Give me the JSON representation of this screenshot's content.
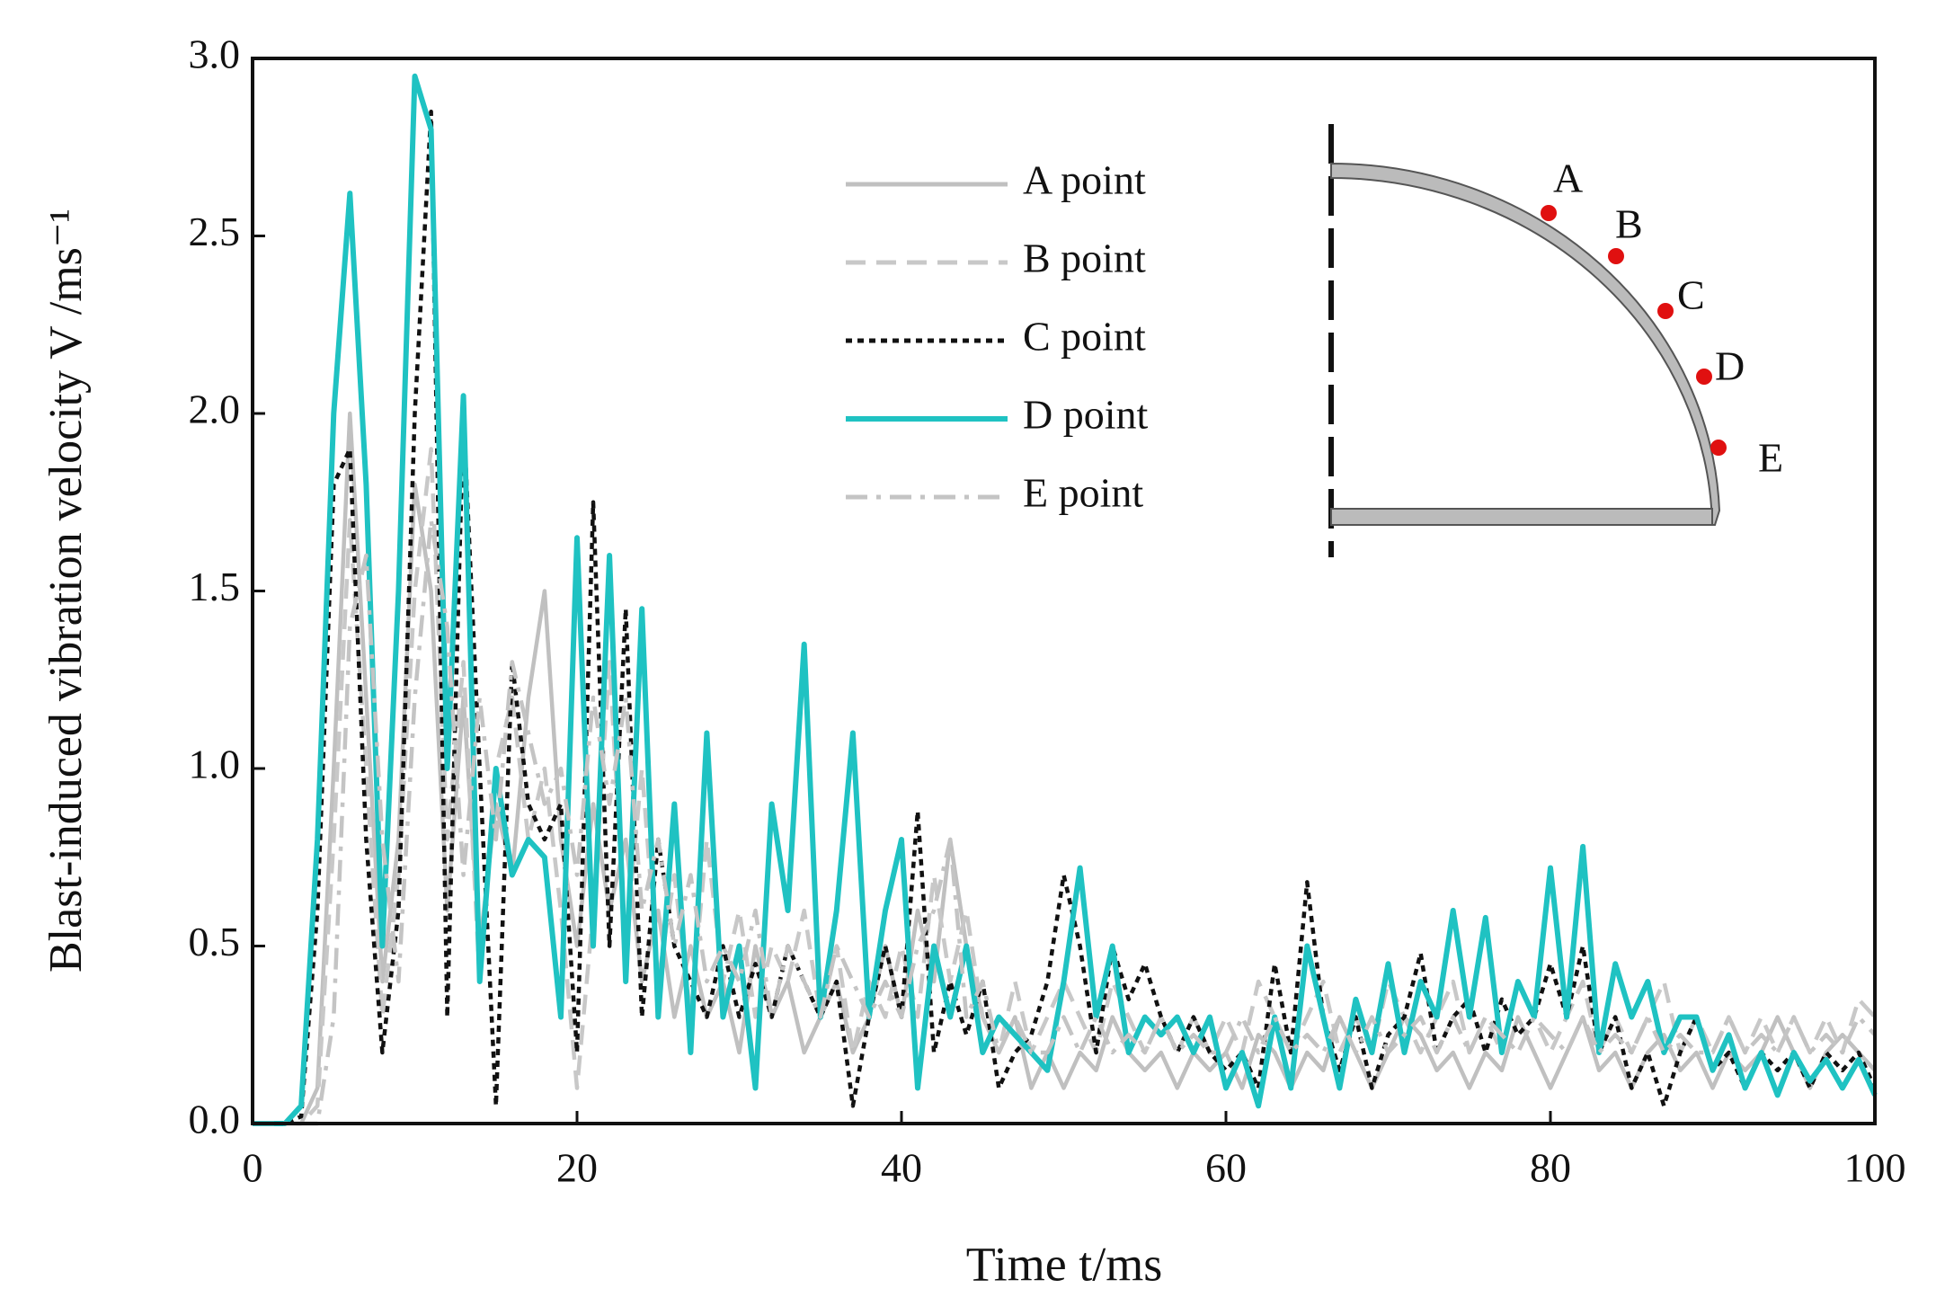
{
  "chart_data": {
    "type": "line",
    "xlabel": "Time t/ms",
    "ylabel": "Blast-induced vibration velocity V /ms⁻¹",
    "xlim": [
      0,
      100
    ],
    "xticks": [
      0,
      20,
      40,
      60,
      80,
      100
    ],
    "ylim": [
      0,
      3
    ],
    "yticks": [
      {
        "value": 0,
        "label": "0.0"
      },
      0.5,
      {
        "value": 1,
        "label": "1.0"
      },
      1.5,
      {
        "value": 2,
        "label": "2.0"
      },
      2.5,
      {
        "value": 3,
        "label": "3.0"
      }
    ],
    "x": [
      0,
      1,
      2,
      3,
      4,
      5,
      6,
      7,
      8,
      9,
      10,
      11,
      12,
      13,
      14,
      15,
      16,
      17,
      18,
      19,
      20,
      21,
      22,
      23,
      24,
      25,
      26,
      27,
      28,
      29,
      30,
      31,
      32,
      33,
      34,
      35,
      36,
      37,
      38,
      39,
      40,
      41,
      42,
      43,
      44,
      45,
      46,
      47,
      48,
      49,
      50,
      51,
      52,
      53,
      54,
      55,
      56,
      57,
      58,
      59,
      60,
      61,
      62,
      63,
      64,
      65,
      66,
      67,
      68,
      69,
      70,
      71,
      72,
      73,
      74,
      75,
      76,
      77,
      78,
      79,
      80,
      81,
      82,
      83,
      84,
      85,
      86,
      87,
      88,
      89,
      90,
      91,
      92,
      93,
      94,
      95,
      96,
      97,
      98,
      99,
      100
    ],
    "series": [
      {
        "name": "A point",
        "color": "#c0c0c0",
        "dash": "solid",
        "values": [
          0,
          0,
          0,
          0,
          0.1,
          1.0,
          2.0,
          1.2,
          0.4,
          0.8,
          1.8,
          1.5,
          0.6,
          1.2,
          0.5,
          0.9,
          0.7,
          1.2,
          1.5,
          0.8,
          0.5,
          0.9,
          0.6,
          0.8,
          0.4,
          0.6,
          0.3,
          0.5,
          0.3,
          0.4,
          0.2,
          0.5,
          0.3,
          0.4,
          0.2,
          0.3,
          0.4,
          0.2,
          0.3,
          0.5,
          0.3,
          0.6,
          0.4,
          0.8,
          0.5,
          0.3,
          0.2,
          0.3,
          0.1,
          0.2,
          0.1,
          0.2,
          0.15,
          0.3,
          0.2,
          0.15,
          0.2,
          0.1,
          0.2,
          0.15,
          0.2,
          0.1,
          0.25,
          0.2,
          0.1,
          0.2,
          0.15,
          0.3,
          0.2,
          0.1,
          0.2,
          0.3,
          0.25,
          0.15,
          0.2,
          0.1,
          0.2,
          0.15,
          0.3,
          0.2,
          0.1,
          0.2,
          0.3,
          0.15,
          0.2,
          0.1,
          0.2,
          0.25,
          0.15,
          0.2,
          0.1,
          0.2,
          0.15,
          0.2,
          0.3,
          0.2,
          0.1,
          0.2,
          0.25,
          0.2,
          0.15
        ]
      },
      {
        "name": "B point",
        "color": "#c8c8c8",
        "dash": "dashed",
        "values": [
          0,
          0,
          0,
          0,
          0.05,
          0.8,
          1.7,
          1.0,
          0.3,
          0.7,
          1.5,
          1.9,
          0.8,
          1.3,
          0.4,
          1.0,
          1.2,
          0.8,
          1.0,
          0.6,
          0.1,
          0.6,
          1.3,
          0.5,
          1.0,
          0.4,
          0.7,
          0.3,
          0.8,
          0.4,
          0.6,
          0.3,
          0.5,
          0.4,
          0.6,
          0.3,
          0.5,
          0.2,
          0.4,
          0.3,
          0.5,
          0.3,
          0.7,
          0.4,
          0.6,
          0.3,
          0.2,
          0.4,
          0.2,
          0.3,
          0.4,
          0.3,
          0.2,
          0.4,
          0.3,
          0.2,
          0.3,
          0.2,
          0.3,
          0.2,
          0.3,
          0.2,
          0.4,
          0.3,
          0.2,
          0.3,
          0.4,
          0.2,
          0.3,
          0.2,
          0.4,
          0.3,
          0.2,
          0.3,
          0.4,
          0.2,
          0.3,
          0.2,
          0.4,
          0.3,
          0.2,
          0.3,
          0.4,
          0.2,
          0.3,
          0.2,
          0.3,
          0.4,
          0.2,
          0.3,
          0.2,
          0.3,
          0.2,
          0.3,
          0.2,
          0.3,
          0.2,
          0.3,
          0.2,
          0.35,
          0.3
        ]
      },
      {
        "name": "C point",
        "color": "#111111",
        "dash": "dotted",
        "values": [
          0,
          0,
          0,
          0.02,
          0.6,
          1.8,
          1.9,
          0.8,
          0.2,
          0.6,
          2.0,
          2.85,
          0.3,
          2.0,
          1.0,
          0.05,
          1.3,
          0.9,
          0.8,
          0.9,
          0.2,
          1.75,
          0.5,
          1.45,
          0.3,
          0.8,
          0.5,
          0.4,
          0.3,
          0.5,
          0.3,
          0.45,
          0.3,
          0.5,
          0.4,
          0.3,
          0.4,
          0.05,
          0.3,
          0.5,
          0.3,
          0.88,
          0.2,
          0.4,
          0.25,
          0.4,
          0.1,
          0.2,
          0.25,
          0.4,
          0.7,
          0.5,
          0.2,
          0.5,
          0.35,
          0.45,
          0.3,
          0.2,
          0.3,
          0.2,
          0.15,
          0.2,
          0.1,
          0.45,
          0.2,
          0.68,
          0.3,
          0.15,
          0.3,
          0.1,
          0.25,
          0.3,
          0.48,
          0.2,
          0.3,
          0.35,
          0.2,
          0.35,
          0.25,
          0.3,
          0.45,
          0.3,
          0.5,
          0.2,
          0.3,
          0.1,
          0.2,
          0.05,
          0.2,
          0.3,
          0.15,
          0.2,
          0.1,
          0.2,
          0.15,
          0.2,
          0.1,
          0.2,
          0.15,
          0.2,
          0.1
        ]
      },
      {
        "name": "D point",
        "color": "#1fc2c2",
        "dash": "solid",
        "values": [
          0,
          0,
          0,
          0.05,
          0.8,
          2.0,
          2.62,
          1.8,
          0.5,
          1.5,
          2.95,
          2.8,
          1.0,
          2.05,
          0.4,
          1.0,
          0.7,
          0.8,
          0.75,
          0.3,
          1.65,
          0.5,
          1.6,
          0.4,
          1.45,
          0.3,
          0.9,
          0.2,
          1.1,
          0.3,
          0.5,
          0.1,
          0.9,
          0.6,
          1.35,
          0.3,
          0.6,
          1.1,
          0.3,
          0.6,
          0.8,
          0.1,
          0.5,
          0.3,
          0.5,
          0.2,
          0.3,
          0.25,
          0.2,
          0.15,
          0.4,
          0.72,
          0.3,
          0.5,
          0.2,
          0.3,
          0.25,
          0.3,
          0.2,
          0.3,
          0.1,
          0.2,
          0.05,
          0.3,
          0.1,
          0.5,
          0.3,
          0.1,
          0.35,
          0.2,
          0.45,
          0.2,
          0.4,
          0.3,
          0.6,
          0.3,
          0.58,
          0.2,
          0.4,
          0.3,
          0.72,
          0.3,
          0.78,
          0.2,
          0.45,
          0.3,
          0.4,
          0.2,
          0.3,
          0.3,
          0.15,
          0.25,
          0.1,
          0.2,
          0.08,
          0.2,
          0.12,
          0.18,
          0.1,
          0.18,
          0.08
        ]
      },
      {
        "name": "E point",
        "color": "#c4c4c4",
        "dash": "dashdot",
        "values": [
          0,
          0,
          0,
          0,
          0,
          0.3,
          1.4,
          1.6,
          0.8,
          0.4,
          1.2,
          1.7,
          1.4,
          0.7,
          1.2,
          0.8,
          1.3,
          1.1,
          0.9,
          1.0,
          0.7,
          1.2,
          0.9,
          1.2,
          0.6,
          0.8,
          0.5,
          0.7,
          0.4,
          0.5,
          0.4,
          0.6,
          0.3,
          0.5,
          0.4,
          0.3,
          0.5,
          0.4,
          0.3,
          0.4,
          0.3,
          0.5,
          0.6,
          0.8,
          0.3,
          0.4,
          0.2,
          0.3,
          0.2,
          0.2,
          0.3,
          0.2,
          0.3,
          0.2,
          0.25,
          0.2,
          0.3,
          0.2,
          0.25,
          0.2,
          0.2,
          0.3,
          0.2,
          0.3,
          0.2,
          0.25,
          0.2,
          0.3,
          0.2,
          0.3,
          0.2,
          0.25,
          0.3,
          0.2,
          0.3,
          0.2,
          0.3,
          0.25,
          0.2,
          0.3,
          0.25,
          0.2,
          0.3,
          0.2,
          0.25,
          0.2,
          0.3,
          0.2,
          0.25,
          0.2,
          0.2,
          0.3,
          0.2,
          0.25,
          0.2,
          0.3,
          0.2,
          0.25,
          0.2,
          0.3,
          0.25
        ]
      }
    ],
    "inset_labels": [
      "A",
      "B",
      "C",
      "D",
      "E"
    ]
  }
}
